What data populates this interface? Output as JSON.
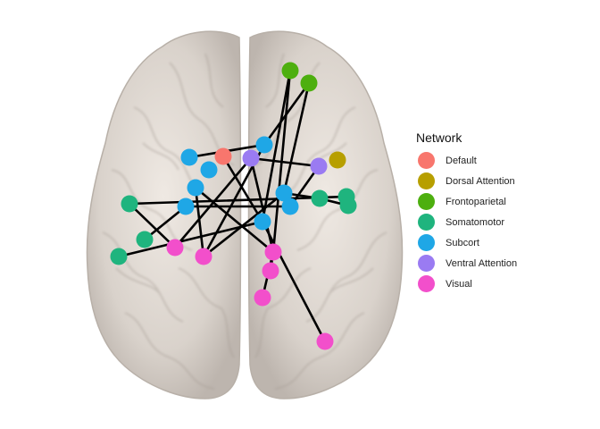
{
  "legend": {
    "title": "Network",
    "items": [
      {
        "label": "Default",
        "color": "#F8766D"
      },
      {
        "label": "Dorsal Attention",
        "color": "#B79F00"
      },
      {
        "label": "Frontoparietal",
        "color": "#4DAF0F"
      },
      {
        "label": "Somatomotor",
        "color": "#1FB47E"
      },
      {
        "label": "Subcort",
        "color": "#1FA7E6"
      },
      {
        "label": "Ventral Attention",
        "color": "#9A7BF2"
      },
      {
        "label": "Visual",
        "color": "#F24FCB"
      }
    ]
  }
}
